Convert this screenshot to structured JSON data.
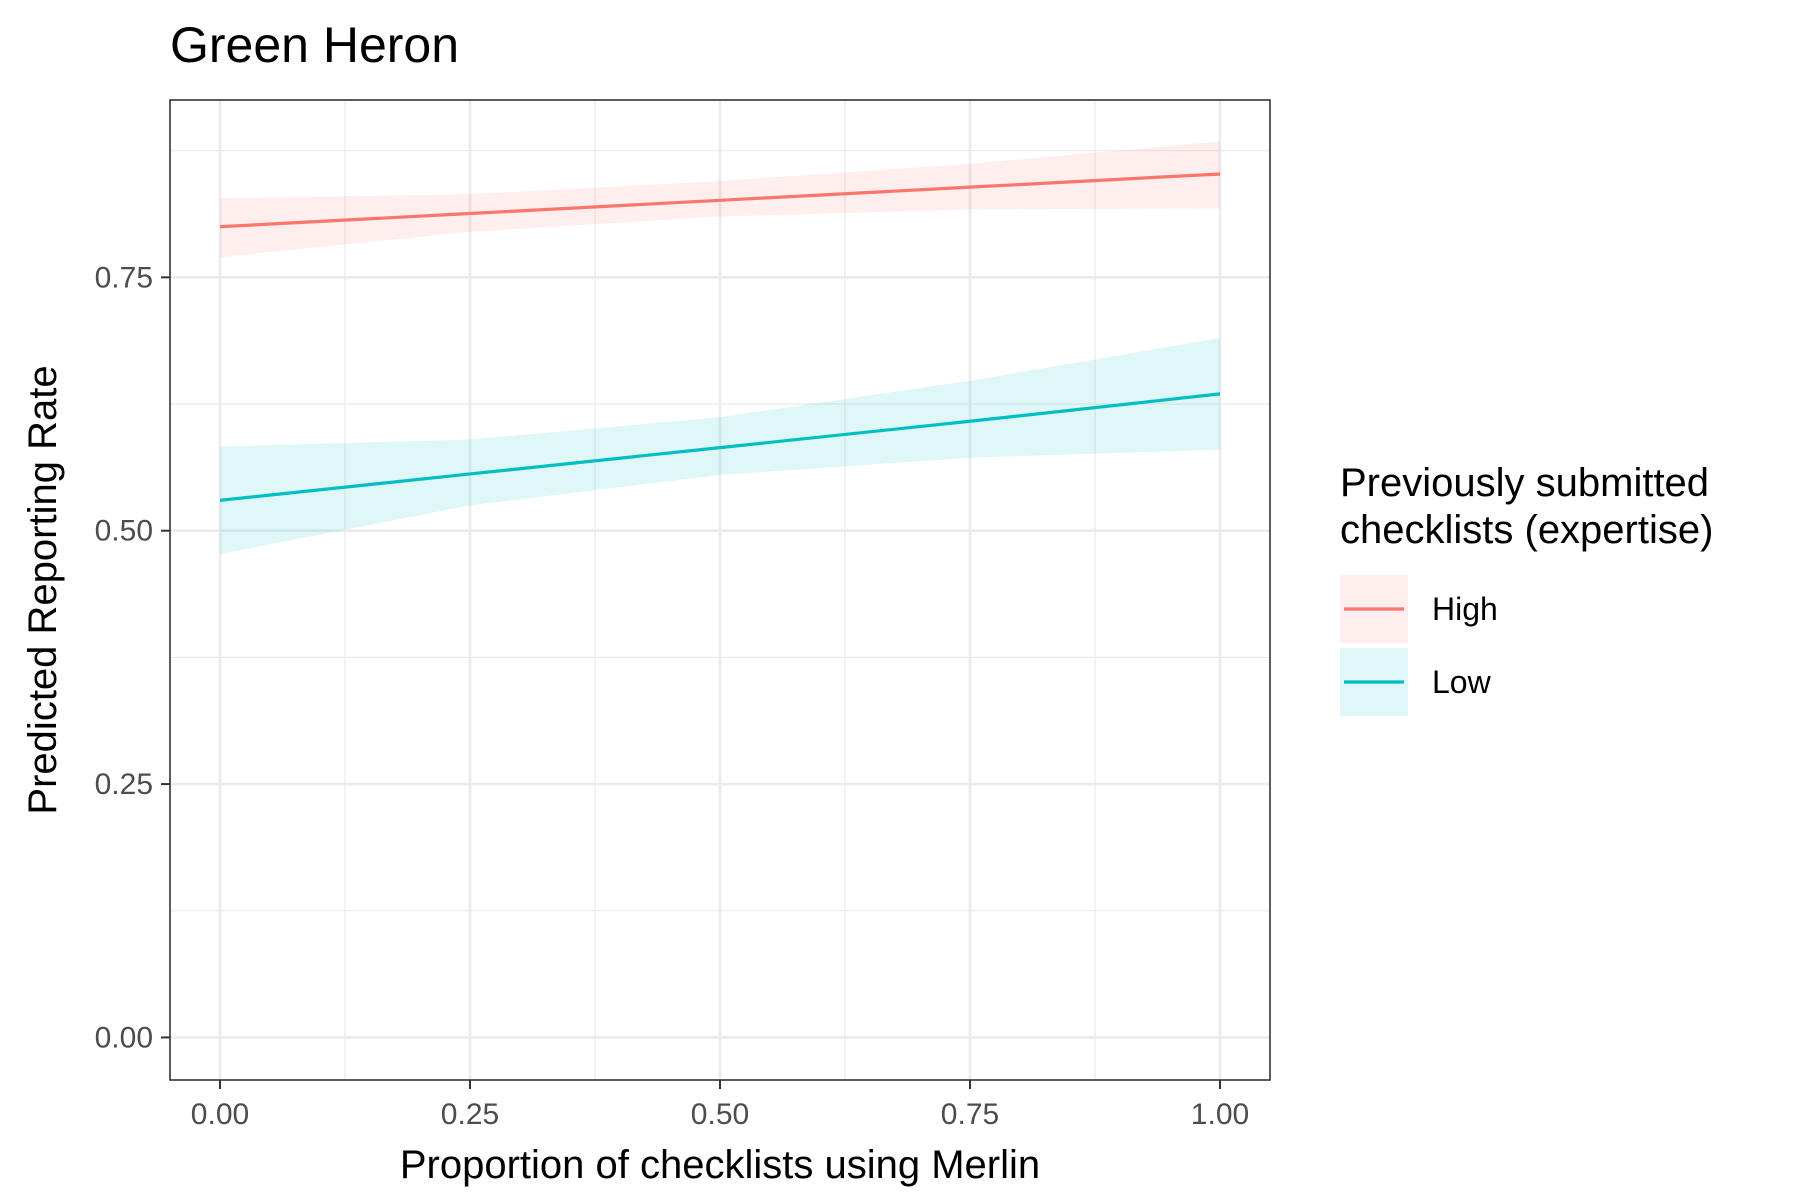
{
  "chart_data": {
    "type": "line",
    "title": "Green Heron",
    "xlabel": "Proportion of checklists using Merlin",
    "ylabel": "Predicted Reporting Rate",
    "xlim": [
      -0.05,
      1.05
    ],
    "ylim": [
      -0.042,
      0.925
    ],
    "x_ticks": [
      0,
      0.25,
      0.5,
      0.75,
      1
    ],
    "x_tick_labels": [
      "0.00",
      "0.25",
      "0.50",
      "0.75",
      "1.00"
    ],
    "y_ticks": [
      0,
      0.25,
      0.5,
      0.75
    ],
    "y_tick_labels": [
      "0.00",
      "0.25",
      "0.50",
      "0.75"
    ],
    "grid": true,
    "legend": {
      "title_lines": [
        "Previously submitted",
        "checklists (expertise)"
      ],
      "placement": "right"
    },
    "x": [
      0,
      0.25,
      0.5,
      0.75,
      1
    ],
    "series": [
      {
        "name": "High",
        "color": "#F8766D",
        "values": [
          0.8,
          0.813,
          0.826,
          0.839,
          0.852
        ],
        "lower": [
          0.77,
          0.795,
          0.81,
          0.817,
          0.818
        ],
        "upper": [
          0.828,
          0.832,
          0.845,
          0.862,
          0.884
        ]
      },
      {
        "name": "Low",
        "color": "#00BFC4",
        "values": [
          0.53,
          0.556,
          0.582,
          0.608,
          0.635
        ],
        "lower": [
          0.477,
          0.525,
          0.555,
          0.572,
          0.58
        ],
        "upper": [
          0.583,
          0.59,
          0.612,
          0.648,
          0.69
        ]
      }
    ]
  }
}
